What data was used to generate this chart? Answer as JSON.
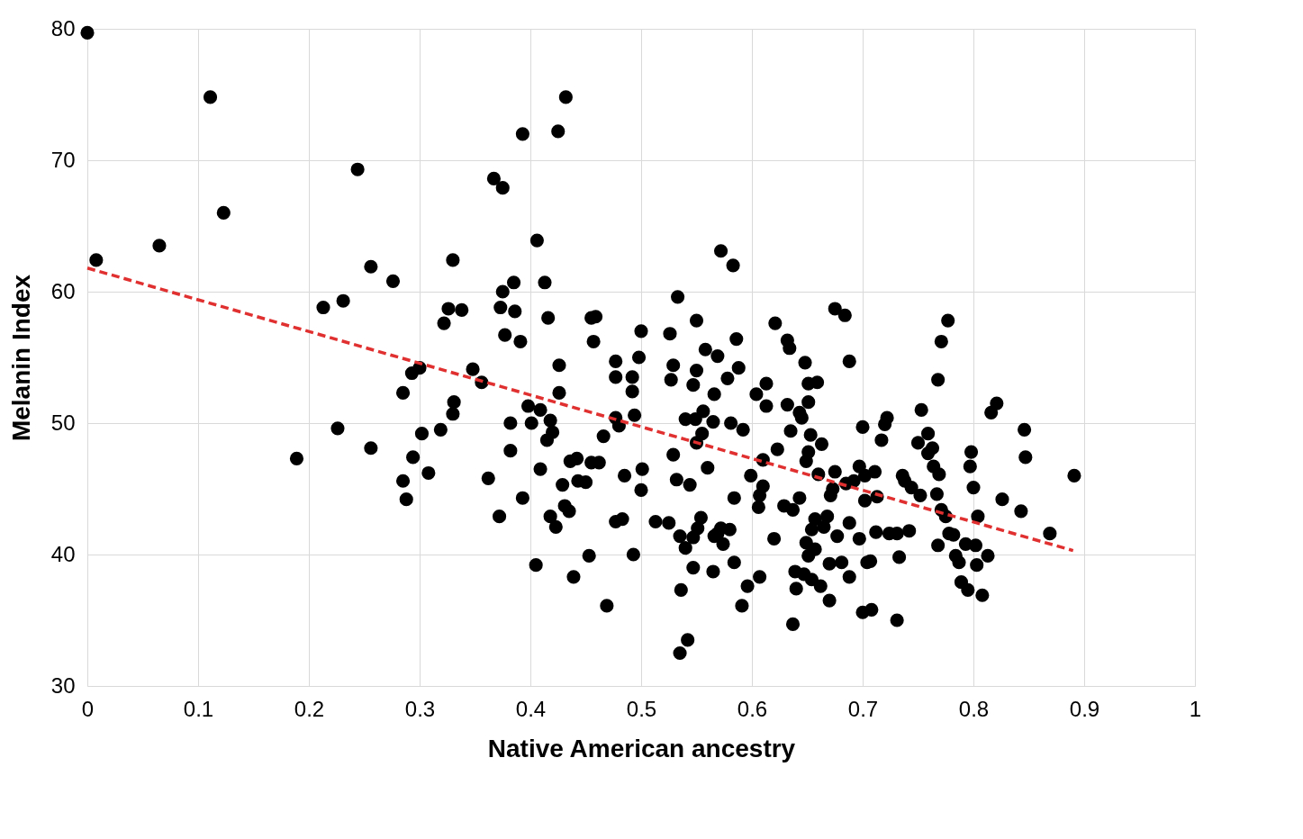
{
  "chart_data": {
    "type": "scatter",
    "xlabel": "Native American ancestry",
    "ylabel": "Melanin Index",
    "xlim": [
      0,
      1
    ],
    "ylim": [
      30,
      80
    ],
    "xticks": [
      0,
      0.1,
      0.2,
      0.3,
      0.4,
      0.5,
      0.6,
      0.7,
      0.8,
      0.9,
      1
    ],
    "yticks": [
      30,
      40,
      50,
      60,
      70,
      80
    ],
    "grid": true,
    "series": [
      {
        "color": "#000000",
        "marker": "circle",
        "x": [
          0,
          0.008,
          0.065,
          0.111,
          0.123,
          0.189,
          0.213,
          0.231,
          0.226,
          0.244,
          0.256,
          0.256,
          0.276,
          0.285,
          0.285,
          0.288,
          0.293,
          0.294,
          0.3,
          0.302,
          0.308,
          0.319,
          0.322,
          0.326,
          0.33,
          0.33,
          0.331,
          0.338,
          0.348,
          0.356,
          0.362,
          0.367,
          0.373,
          0.372,
          0.375,
          0.375,
          0.377,
          0.382,
          0.382,
          0.385,
          0.386,
          0.391,
          0.393,
          0.393,
          0.398,
          0.401,
          0.406,
          0.405,
          0.409,
          0.409,
          0.413,
          0.415,
          0.416,
          0.418,
          0.418,
          0.42,
          0.423,
          0.425,
          0.426,
          0.426,
          0.429,
          0.431,
          0.432,
          0.435,
          0.436,
          0.439,
          0.442,
          0.443,
          0.45,
          0.453,
          0.455,
          0.455,
          0.457,
          0.459,
          0.462,
          0.466,
          0.469,
          0.477,
          0.477,
          0.477,
          0.477,
          0.48,
          0.483,
          0.485,
          0.492,
          0.492,
          0.493,
          0.494,
          0.498,
          0.5,
          0.501,
          0.5,
          0.513,
          0.525,
          0.526,
          0.527,
          0.529,
          0.529,
          0.532,
          0.533,
          0.535,
          0.536,
          0.535,
          0.54,
          0.54,
          0.542,
          0.544,
          0.547,
          0.547,
          0.547,
          0.549,
          0.55,
          0.55,
          0.551,
          0.55,
          0.554,
          0.555,
          0.556,
          0.558,
          0.56,
          0.565,
          0.565,
          0.566,
          0.569,
          0.566,
          0.569,
          0.572,
          0.572,
          0.574,
          0.578,
          0.58,
          0.581,
          0.583,
          0.584,
          0.584,
          0.586,
          0.588,
          0.591,
          0.592,
          0.596,
          0.599,
          0.604,
          0.606,
          0.607,
          0.607,
          0.61,
          0.61,
          0.613,
          0.613,
          0.62,
          0.621,
          0.623,
          0.629,
          0.632,
          0.632,
          0.634,
          0.635,
          0.637,
          0.637,
          0.639,
          0.64,
          0.643,
          0.643,
          0.645,
          0.647,
          0.648,
          0.649,
          0.651,
          0.651,
          0.651,
          0.649,
          0.651,
          0.653,
          0.654,
          0.654,
          0.657,
          0.657,
          0.659,
          0.66,
          0.662,
          0.663,
          0.665,
          0.668,
          0.67,
          0.67,
          0.671,
          0.673,
          0.675,
          0.675,
          0.677,
          0.681,
          0.684,
          0.685,
          0.688,
          0.688,
          0.688,
          0.692,
          0.697,
          0.697,
          0.7,
          0.7,
          0.702,
          0.702,
          0.704,
          0.708,
          0.707,
          0.711,
          0.712,
          0.713,
          0.717,
          0.72,
          0.722,
          0.724,
          0.731,
          0.731,
          0.733,
          0.736,
          0.738,
          0.742,
          0.744,
          0.75,
          0.752,
          0.753,
          0.759,
          0.759,
          0.763,
          0.764,
          0.767,
          0.768,
          0.769,
          0.768,
          0.771,
          0.771,
          0.775,
          0.777,
          0.778,
          0.782,
          0.784,
          0.787,
          0.789,
          0.793,
          0.795,
          0.797,
          0.798,
          0.8,
          0.802,
          0.803,
          0.804,
          0.808,
          0.813,
          0.816,
          0.821,
          0.826,
          0.843,
          0.846,
          0.847,
          0.869,
          0.891
        ],
        "values": [
          79.7,
          62.4,
          63.5,
          74.8,
          66.0,
          47.3,
          58.8,
          59.3,
          49.6,
          69.3,
          61.9,
          48.1,
          60.8,
          52.3,
          45.6,
          44.2,
          53.8,
          47.4,
          54.2,
          49.2,
          46.2,
          49.5,
          57.6,
          58.7,
          62.4,
          50.7,
          51.6,
          58.6,
          54.1,
          53.1,
          45.8,
          68.6,
          58.8,
          42.9,
          67.9,
          60.0,
          56.7,
          50.0,
          47.9,
          60.7,
          58.5,
          56.2,
          44.3,
          72.0,
          51.3,
          50.0,
          63.9,
          39.2,
          51.0,
          46.5,
          60.7,
          48.7,
          58.0,
          42.9,
          50.2,
          49.3,
          42.1,
          72.2,
          54.4,
          52.3,
          45.3,
          43.7,
          74.8,
          43.3,
          47.1,
          38.3,
          47.3,
          45.6,
          45.5,
          39.9,
          47.0,
          58.0,
          56.2,
          58.1,
          47.0,
          49.0,
          36.1,
          53.5,
          42.5,
          54.7,
          50.4,
          49.8,
          42.7,
          46.0,
          53.5,
          52.4,
          40.0,
          50.6,
          55.0,
          57.0,
          46.5,
          44.9,
          42.5,
          42.4,
          56.8,
          53.3,
          54.4,
          47.6,
          45.7,
          59.6,
          41.4,
          37.3,
          32.5,
          50.3,
          40.5,
          33.5,
          45.3,
          52.9,
          41.3,
          39.0,
          50.3,
          48.5,
          54.0,
          42.0,
          57.8,
          42.8,
          49.2,
          50.9,
          55.6,
          46.6,
          38.7,
          50.1,
          52.2,
          55.1,
          41.4,
          41.6,
          63.1,
          42.0,
          40.8,
          53.4,
          41.9,
          50.0,
          62.0,
          39.4,
          44.3,
          56.4,
          54.2,
          36.1,
          49.5,
          37.6,
          46.0,
          52.2,
          43.6,
          38.3,
          44.5,
          45.2,
          47.2,
          53.0,
          51.3,
          41.2,
          57.6,
          48.0,
          43.7,
          51.4,
          56.3,
          55.7,
          49.4,
          43.4,
          34.7,
          38.7,
          37.4,
          44.3,
          50.8,
          50.4,
          38.5,
          54.6,
          47.1,
          51.6,
          47.8,
          53.0,
          40.9,
          39.9,
          49.1,
          38.1,
          41.9,
          40.4,
          42.7,
          53.1,
          46.1,
          37.6,
          48.4,
          42.1,
          42.9,
          36.5,
          39.3,
          44.5,
          45.0,
          46.3,
          58.7,
          41.4,
          39.4,
          58.2,
          45.4,
          38.3,
          54.7,
          42.4,
          45.6,
          46.7,
          41.2,
          35.6,
          49.7,
          44.1,
          46.0,
          39.4,
          35.8,
          39.5,
          46.3,
          41.7,
          44.4,
          48.7,
          49.9,
          50.4,
          41.6,
          35.0,
          41.6,
          39.8,
          46.0,
          45.6,
          41.8,
          45.1,
          48.5,
          44.5,
          51.0,
          49.2,
          47.7,
          48.1,
          46.7,
          44.6,
          40.7,
          46.1,
          53.3,
          56.2,
          43.4,
          42.9,
          57.8,
          41.6,
          41.5,
          39.9,
          39.4,
          37.9,
          40.8,
          37.3,
          46.7,
          47.8,
          45.1,
          40.7,
          39.2,
          42.9,
          36.9,
          39.9,
          50.8,
          51.5,
          44.2,
          43.3,
          49.5,
          47.4,
          41.6,
          46.0
        ]
      },
      {
        "type": "line",
        "color": "#e03030",
        "line_style": "dashed",
        "marker": "none",
        "x": [
          0,
          0.89
        ],
        "values": [
          61.8,
          40.3
        ]
      }
    ]
  }
}
